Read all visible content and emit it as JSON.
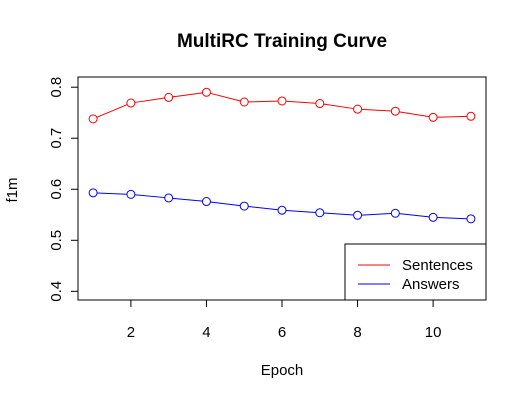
{
  "chart_data": {
    "type": "line",
    "title": "MultiRC Training Curve",
    "xlabel": "Epoch",
    "ylabel": "f1m",
    "x": [
      1,
      2,
      3,
      4,
      5,
      6,
      7,
      8,
      9,
      10,
      11
    ],
    "xticks": [
      2,
      4,
      6,
      8,
      10
    ],
    "xlim": [
      0.6,
      11.4
    ],
    "yticks": [
      0.4,
      0.5,
      0.6,
      0.7,
      0.8
    ],
    "ylim": [
      0.383,
      0.82
    ],
    "grid": false,
    "legend_position": "bottom-right",
    "series": [
      {
        "name": "Sentences",
        "color": "#ff0000",
        "values": [
          0.738,
          0.769,
          0.78,
          0.79,
          0.771,
          0.773,
          0.768,
          0.757,
          0.753,
          0.741,
          0.743
        ]
      },
      {
        "name": "Answers",
        "color": "#0000ff",
        "values": [
          0.593,
          0.59,
          0.583,
          0.576,
          0.567,
          0.559,
          0.554,
          0.549,
          0.553,
          0.545,
          0.542
        ]
      }
    ]
  }
}
